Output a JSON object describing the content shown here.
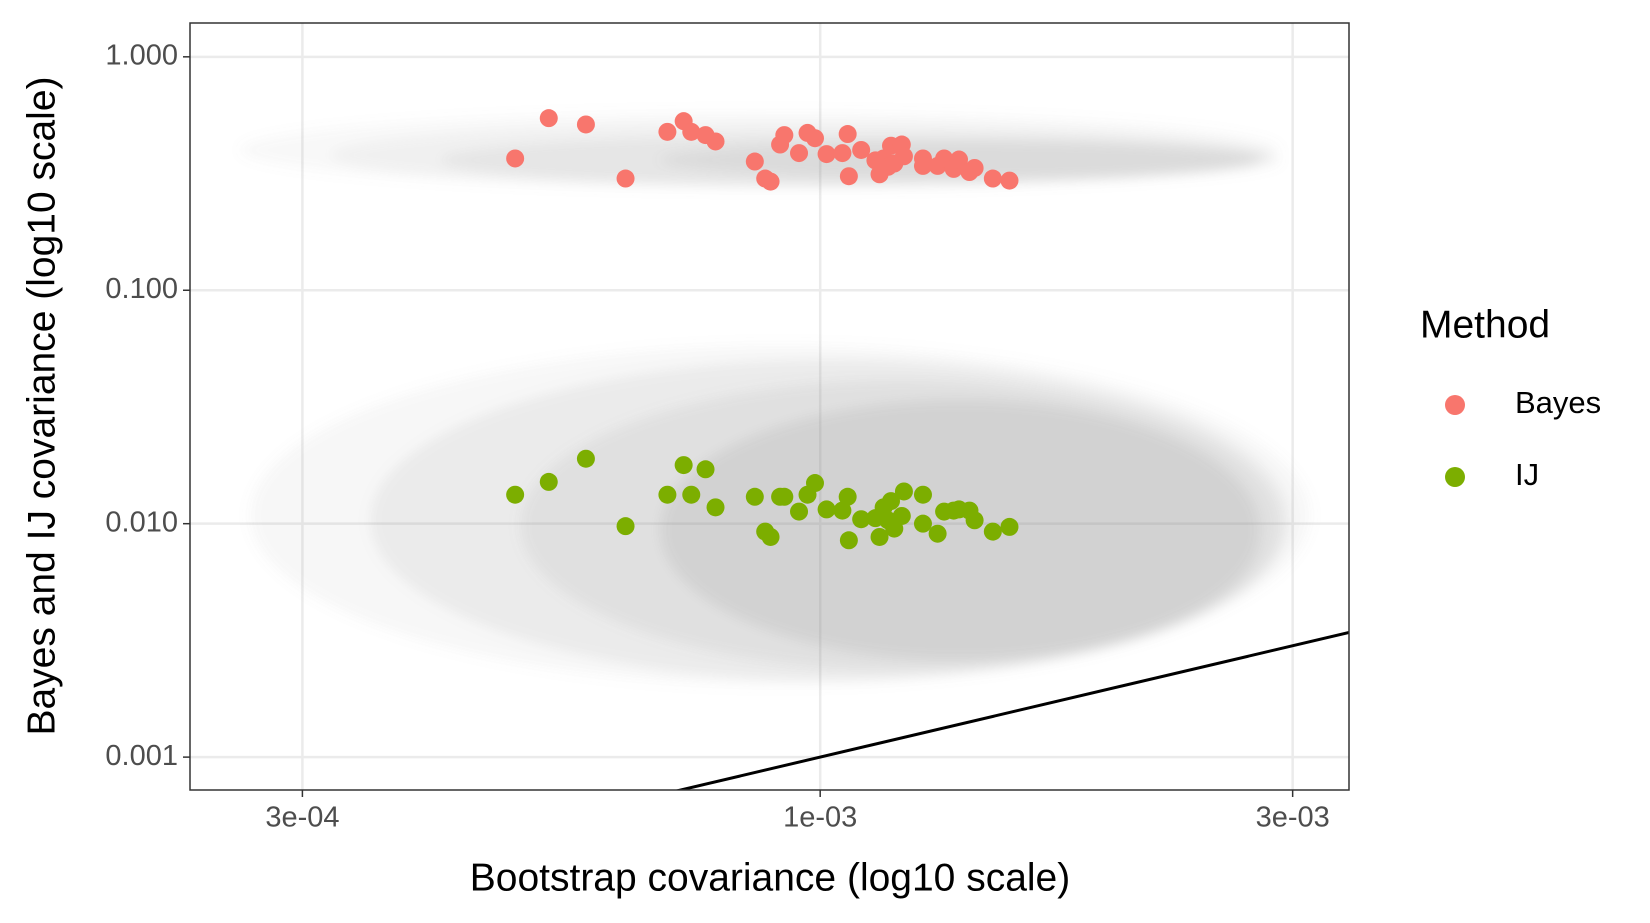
{
  "chart_data": {
    "type": "scatter",
    "xlabel": "Bootstrap covariance (log10 scale)",
    "ylabel": "Bayes and IJ covariance (log10 scale)",
    "xscale": "log",
    "yscale": "log",
    "xlim": [
      0.000231,
      0.00342
    ],
    "ylim": [
      0.000723,
      1.396
    ],
    "xticks": [
      {
        "value": 0.0003,
        "label": "3e-04"
      },
      {
        "value": 0.001,
        "label": "1e-03"
      },
      {
        "value": 0.003,
        "label": "3e-03"
      }
    ],
    "yticks": [
      0.001,
      {
        "value": 0.01,
        "label": "0.010"
      },
      {
        "value": 0.1,
        "label": "0.100"
      },
      {
        "value": 1,
        "label": "1.000"
      }
    ],
    "grid": true,
    "legend_title": "Method",
    "legend": "right",
    "series": [
      {
        "name": "Bayes",
        "color": "#f8766d",
        "x": [
          0.000492,
          0.000532,
          0.00058,
          0.000636,
          0.000701,
          0.000728,
          0.000741,
          0.000766,
          0.000784,
          0.000859,
          0.00088,
          0.000891,
          0.000911,
          0.00092,
          0.000952,
          0.000971,
          0.000988,
          0.001015,
          0.001053,
          0.001066,
          0.001069,
          0.0011,
          0.001137,
          0.001148,
          0.001159,
          0.001171,
          0.001179,
          0.001188,
          0.001209,
          0.001215,
          0.00127,
          0.00127,
          0.001314,
          0.001334,
          0.001364,
          0.001381,
          0.001415,
          0.001432,
          0.001494,
          0.001553
        ],
        "values": [
          0.367,
          0.546,
          0.513,
          0.301,
          0.477,
          0.53,
          0.477,
          0.462,
          0.434,
          0.356,
          0.301,
          0.292,
          0.421,
          0.462,
          0.387,
          0.472,
          0.448,
          0.383,
          0.387,
          0.467,
          0.308,
          0.399,
          0.36,
          0.314,
          0.367,
          0.338,
          0.416,
          0.349,
          0.421,
          0.375,
          0.367,
          0.341,
          0.341,
          0.367,
          0.331,
          0.363,
          0.321,
          0.334,
          0.301,
          0.295
        ]
      },
      {
        "name": "IJ",
        "color": "#7cae00",
        "x": [
          0.000492,
          0.000532,
          0.00058,
          0.000636,
          0.000701,
          0.000728,
          0.000741,
          0.000766,
          0.000784,
          0.000859,
          0.00088,
          0.000891,
          0.000911,
          0.00092,
          0.000952,
          0.000971,
          0.000988,
          0.001015,
          0.001053,
          0.001066,
          0.001069,
          0.0011,
          0.001137,
          0.001148,
          0.001159,
          0.001171,
          0.001179,
          0.001188,
          0.001209,
          0.001215,
          0.00127,
          0.00127,
          0.001314,
          0.001334,
          0.001364,
          0.001381,
          0.001415,
          0.001432,
          0.001494,
          0.001553
        ],
        "values": [
          0.01331,
          0.0151,
          0.01898,
          0.00976,
          0.01331,
          0.01782,
          0.01331,
          0.0171,
          0.01175,
          0.01304,
          0.00925,
          0.00877,
          0.01304,
          0.01304,
          0.01127,
          0.01331,
          0.01493,
          0.01151,
          0.01138,
          0.01304,
          0.00849,
          0.01045,
          0.01056,
          0.00877,
          0.01175,
          0.01034,
          0.0125,
          0.00953,
          0.01079,
          0.01374,
          0.01331,
          0.01,
          0.00906,
          0.01127,
          0.01138,
          0.01151,
          0.01138,
          0.01034,
          0.00925,
          0.00969
        ]
      }
    ]
  }
}
